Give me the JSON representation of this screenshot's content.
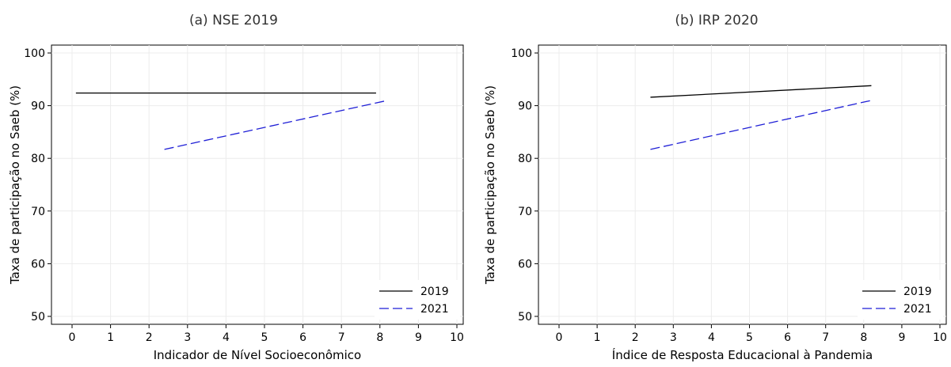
{
  "chart_data": [
    {
      "type": "line",
      "title": "(a) NSE 2019",
      "xlabel": "Indicador de Nível Socioeconômico",
      "ylabel": "Taxa de participação no Saeb (%)",
      "xlim": [
        0,
        10
      ],
      "ylim": [
        50,
        100
      ],
      "xticks": [
        "0",
        "1",
        "2",
        "3",
        "4",
        "5",
        "6",
        "7",
        "8",
        "9",
        "10"
      ],
      "yticks": [
        "50",
        "60",
        "70",
        "80",
        "90",
        "100"
      ],
      "grid": true,
      "legend": "bottom-right",
      "series": [
        {
          "name": "2019",
          "style": "solid",
          "color": "#000000",
          "x": [
            0.1,
            7.9
          ],
          "y": [
            92.4,
            92.4
          ]
        },
        {
          "name": "2021",
          "style": "dashed",
          "color": "#1f1fd6",
          "x": [
            2.4,
            8.2
          ],
          "y": [
            81.7,
            91.0
          ]
        }
      ]
    },
    {
      "type": "line",
      "title": "(b) IRP 2020",
      "xlabel": "Índice de Resposta Educacional à Pandemia",
      "ylabel": "Taxa de participação no Saeb (%)",
      "xlim": [
        0,
        10
      ],
      "ylim": [
        50,
        100
      ],
      "xticks": [
        "0",
        "1",
        "2",
        "3",
        "4",
        "5",
        "6",
        "7",
        "8",
        "9",
        "10"
      ],
      "yticks": [
        "50",
        "60",
        "70",
        "80",
        "90",
        "100"
      ],
      "grid": true,
      "legend": "bottom-right",
      "series": [
        {
          "name": "2019",
          "style": "solid",
          "color": "#000000",
          "x": [
            2.4,
            8.2
          ],
          "y": [
            91.6,
            93.8
          ]
        },
        {
          "name": "2021",
          "style": "dashed",
          "color": "#1f1fd6",
          "x": [
            2.4,
            8.2
          ],
          "y": [
            81.7,
            91.0
          ]
        }
      ]
    }
  ]
}
